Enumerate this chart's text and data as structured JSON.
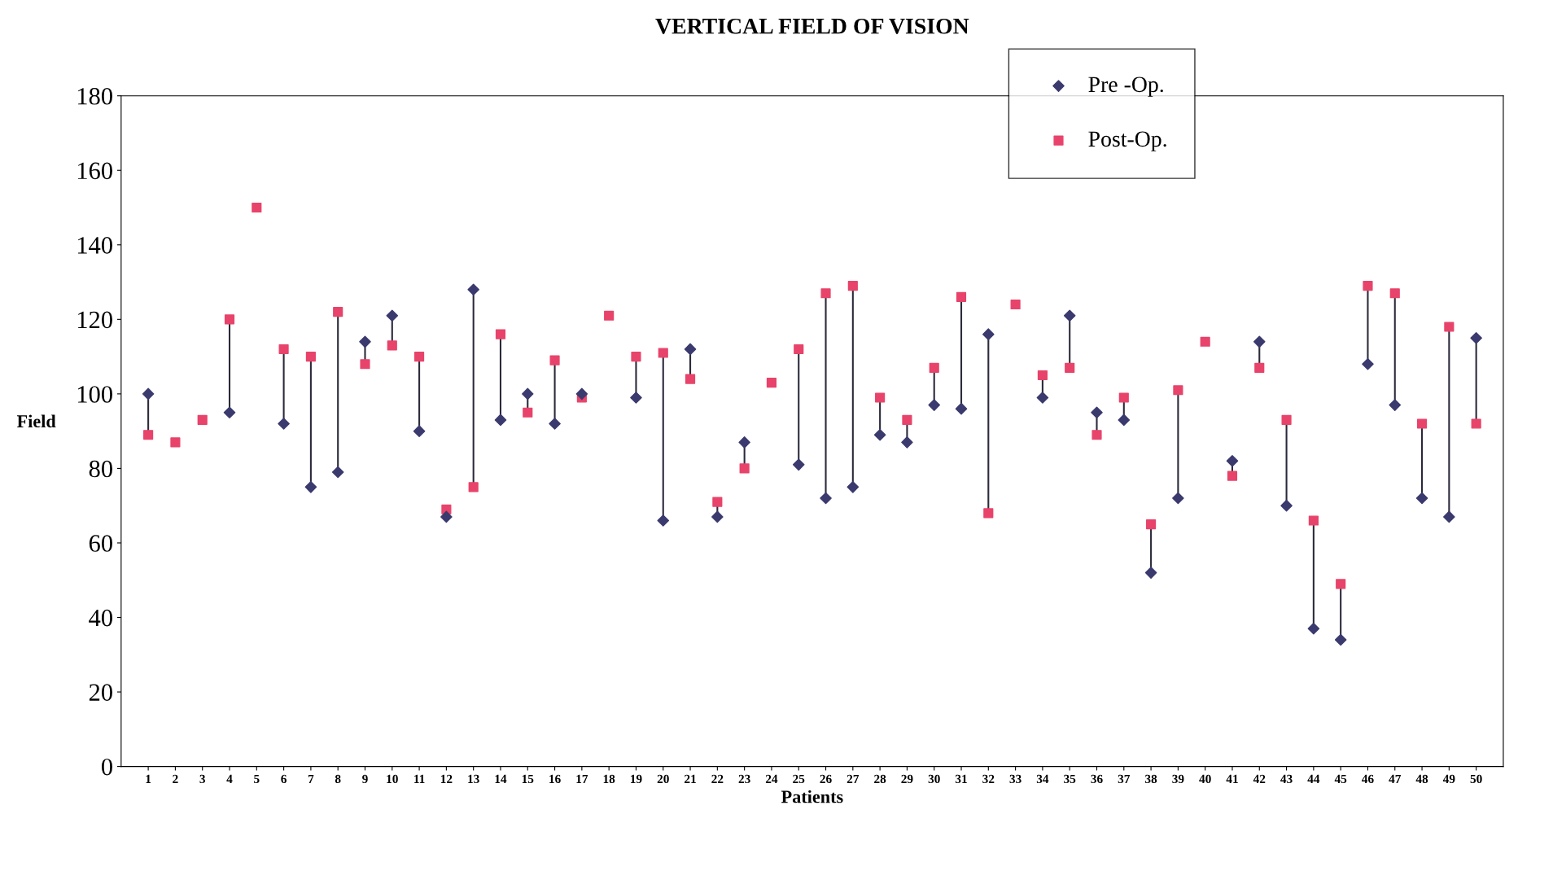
{
  "chart_data": {
    "type": "scatter",
    "title": "VERTICAL FIELD OF VISION",
    "xlabel": "Patients",
    "ylabel": "Field",
    "categories": [
      "1",
      "2",
      "3",
      "4",
      "5",
      "6",
      "7",
      "8",
      "9",
      "10",
      "11",
      "12",
      "13",
      "14",
      "15",
      "16",
      "17",
      "18",
      "19",
      "20",
      "21",
      "22",
      "23",
      "24",
      "25",
      "26",
      "27",
      "28",
      "29",
      "30",
      "31",
      "32",
      "33",
      "34",
      "35",
      "36",
      "37",
      "38",
      "39",
      "40",
      "41",
      "42",
      "43",
      "44",
      "45",
      "46",
      "47",
      "48",
      "49",
      "50"
    ],
    "series": [
      {
        "name": "Pre -Op.",
        "color": "#3b3a6e",
        "marker": "diamond",
        "values": [
          100,
          null,
          null,
          95,
          null,
          92,
          75,
          79,
          114,
          121,
          90,
          67,
          128,
          93,
          100,
          92,
          100,
          null,
          99,
          66,
          112,
          67,
          87,
          null,
          81,
          72,
          75,
          89,
          87,
          97,
          96,
          116,
          null,
          99,
          121,
          95,
          93,
          52,
          72,
          null,
          82,
          114,
          70,
          37,
          34,
          108,
          97,
          72,
          67,
          115
        ]
      },
      {
        "name": "Post-Op.",
        "color": "#e8436a",
        "marker": "square",
        "values": [
          89,
          87,
          93,
          120,
          150,
          112,
          110,
          122,
          108,
          113,
          110,
          69,
          75,
          116,
          95,
          109,
          99,
          121,
          110,
          111,
          104,
          71,
          80,
          103,
          112,
          127,
          129,
          99,
          93,
          107,
          126,
          68,
          124,
          105,
          107,
          89,
          99,
          65,
          101,
          114,
          78,
          107,
          93,
          66,
          49,
          129,
          127,
          92,
          118,
          92
        ]
      }
    ],
    "ylim": [
      0,
      180
    ],
    "yticks": [
      0,
      20,
      40,
      60,
      80,
      100,
      120,
      140,
      160,
      180
    ],
    "grid": false,
    "legend": "top right"
  }
}
